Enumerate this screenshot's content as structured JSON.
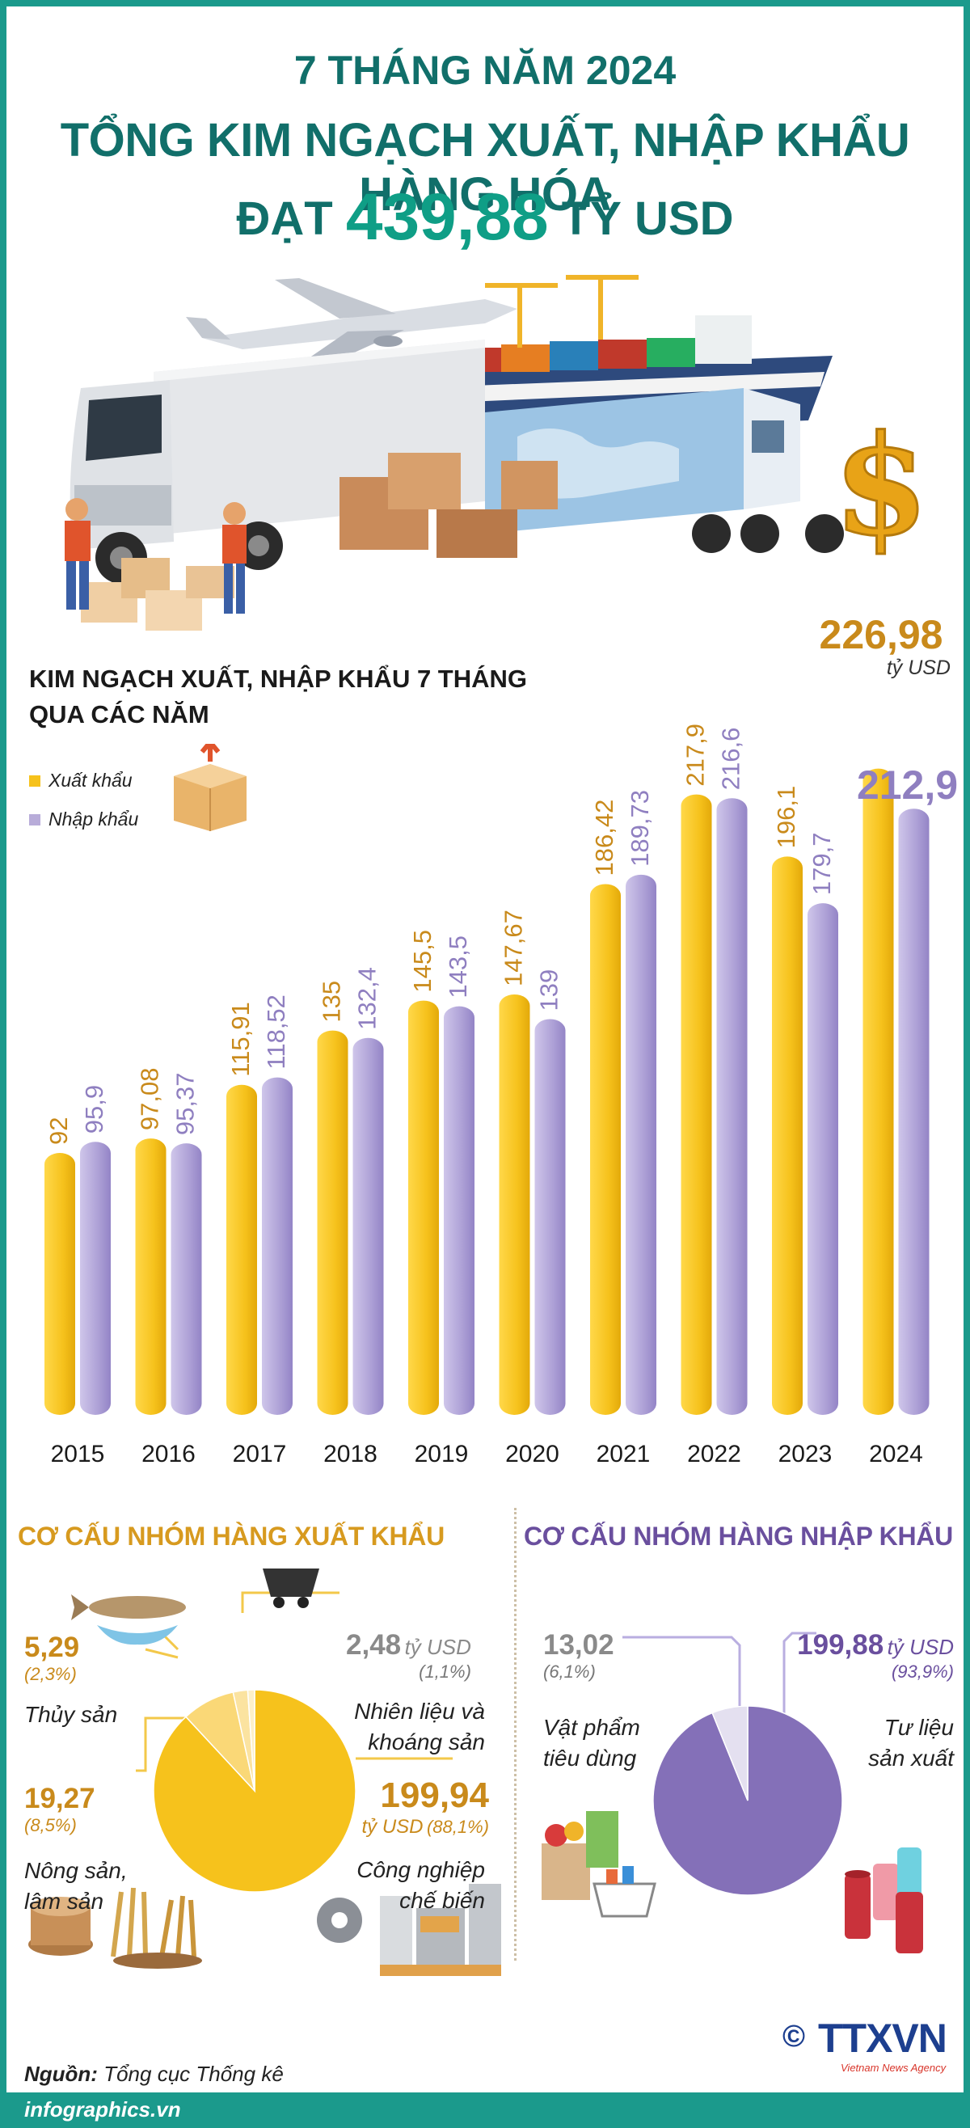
{
  "header": {
    "line1": "7 THÁNG NĂM 2024",
    "line2": "TỔNG KIM NGẠCH XUẤT, NHẬP KHẨU HÀNG HÓA",
    "line3_prefix": "ĐẠT",
    "line3_value": "439,88",
    "line3_suffix": "TỶ USD"
  },
  "colors": {
    "teal": "#116f6a",
    "export": "#f6c21c",
    "import": "#a899d2",
    "export_label": "#c98a1b",
    "import_label": "#8f7fc0"
  },
  "chart_data": {
    "type": "bar",
    "title": "KIM NGẠCH XUẤT, NHẬP KHẨU 7 THÁNG QUA CÁC NĂM",
    "title_line1": "KIM NGẠCH XUẤT, NHẬP KHẨU 7 THÁNG",
    "title_line2": "QUA CÁC NĂM",
    "categories": [
      "2015",
      "2016",
      "2017",
      "2018",
      "2019",
      "2020",
      "2021",
      "2022",
      "2023",
      "2024"
    ],
    "series": [
      {
        "name": "Xuất khẩu",
        "values": [
          92,
          97.08,
          115.91,
          135,
          145.5,
          147.67,
          186.42,
          217.9,
          196.1,
          226.98
        ],
        "labels": [
          "92",
          "97,08",
          "115,91",
          "135",
          "145,5",
          "147,67",
          "186,42",
          "217,9",
          "196,1",
          "226,98"
        ]
      },
      {
        "name": "Nhập khẩu",
        "values": [
          95.9,
          95.37,
          118.52,
          132.4,
          143.5,
          139,
          189.73,
          216.6,
          179.7,
          212.9
        ],
        "labels": [
          "95,9",
          "95,37",
          "118,52",
          "132,4",
          "143,5",
          "139",
          "189,73",
          "216,6",
          "179,7",
          "212,9"
        ]
      }
    ],
    "ylim": [
      0,
      230
    ],
    "grid": false,
    "legend": "top-left",
    "callout": {
      "value": "226,98",
      "unit": "tỷ USD"
    }
  },
  "export_structure": {
    "title": "CƠ CẤU NHÓM HÀNG XUẤT KHẨU",
    "unit": "tỷ USD",
    "items": [
      {
        "value": 199.94,
        "value_label": "199,94",
        "pct": "(88,1%)",
        "label_1": "Công nghiệp",
        "label_2": "chế biến"
      },
      {
        "value": 19.27,
        "value_label": "19,27",
        "pct": "(8,5%)",
        "label_1": "Nông sản,",
        "label_2": "lâm sản"
      },
      {
        "value": 5.29,
        "value_label": "5,29",
        "pct": "(2,3%)",
        "label_1": "Thủy sản",
        "label_2": ""
      },
      {
        "value": 2.48,
        "value_label": "2,48",
        "pct": "(1,1%)",
        "label_1": "Nhiên liệu và",
        "label_2": "khoáng sản"
      }
    ]
  },
  "import_structure": {
    "title": "CƠ CẤU NHÓM HÀNG NHẬP KHẨU",
    "unit": "tỷ USD",
    "items": [
      {
        "value": 199.88,
        "value_label": "199,88",
        "pct": "(93,9%)",
        "label_1": "Tư liệu",
        "label_2": "sản xuất"
      },
      {
        "value": 13.02,
        "value_label": "13,02",
        "pct": "(6,1%)",
        "label_1": "Vật phẩm",
        "label_2": "tiêu dùng"
      }
    ]
  },
  "footer": {
    "source_label": "Nguồn:",
    "source_text": "Tổng cục Thống kê",
    "site": "infographics.vn",
    "copyright": "©",
    "logo_text": "TTXVN",
    "logo_sub": "Vietnam News Agency"
  }
}
